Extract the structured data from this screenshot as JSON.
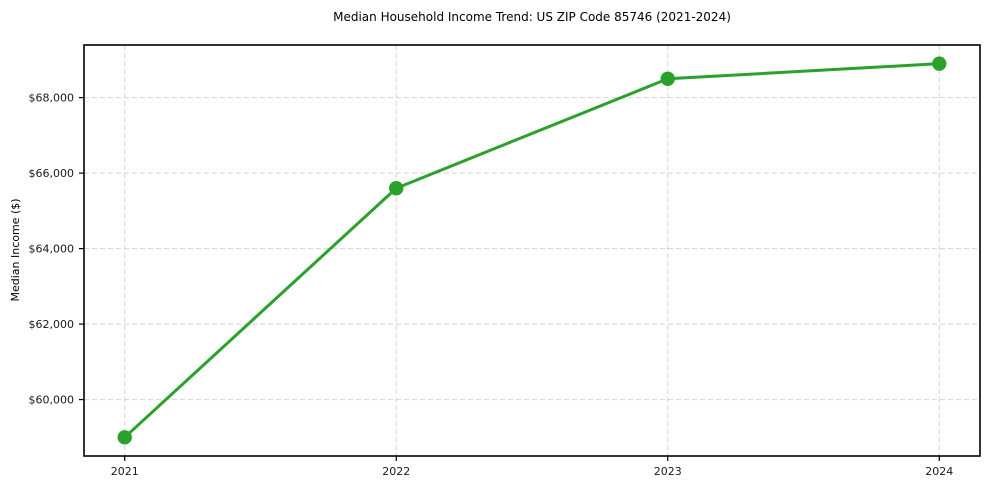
{
  "chart_data": {
    "type": "line",
    "title": "Median Household Income Trend: US ZIP Code 85746 (2021-2024)",
    "xlabel": "",
    "ylabel": "Median Income ($)",
    "x": [
      2021,
      2022,
      2023,
      2024
    ],
    "xtick_labels": [
      "2021",
      "2022",
      "2023",
      "2024"
    ],
    "series": [
      {
        "values": [
          59000,
          65600,
          68500,
          68900
        ],
        "color": "#2ca02c",
        "marker": "circle"
      }
    ],
    "yticks": [
      60000,
      62000,
      64000,
      66000,
      68000
    ],
    "ytick_labels": [
      "$60,000",
      "$62,000",
      "$64,000",
      "$66,000",
      "$68,000"
    ],
    "xlim": [
      2020.85,
      2024.15
    ],
    "ylim": [
      58505,
      69395
    ],
    "grid": true,
    "grid_style": "dashed",
    "grid_color": "#c9c9c9",
    "background": "#ffffff",
    "legend": "none"
  }
}
